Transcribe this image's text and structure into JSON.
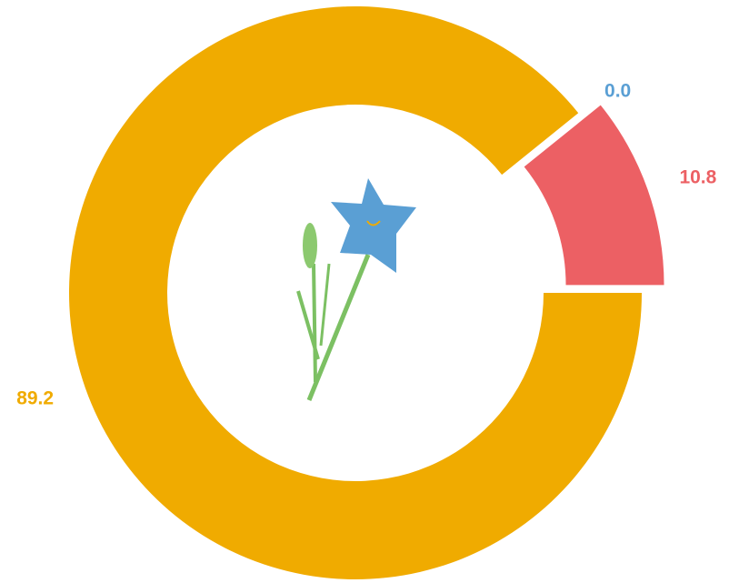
{
  "chart_data": {
    "type": "donut",
    "values": [
      89.2,
      0.0,
      10.8
    ],
    "value_labels": [
      "89.2",
      "0.0",
      "10.8"
    ],
    "colors": [
      "#f0ab00",
      "#5a9fd4",
      "#ec6064"
    ],
    "exploded": [
      false,
      false,
      true
    ],
    "start_angle": 90
  }
}
